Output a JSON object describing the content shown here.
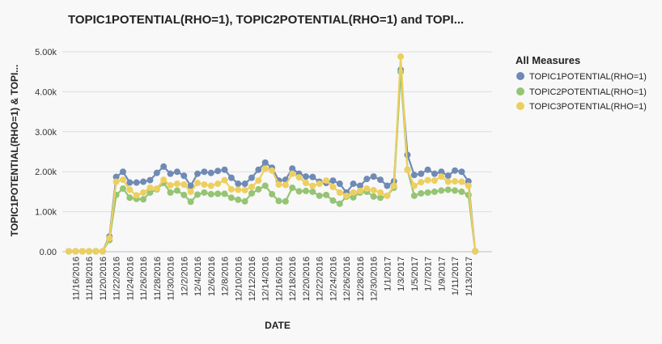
{
  "chart_data": {
    "type": "line",
    "title": "TOPIC1POTENTIAL(RHO=1), TOPIC2POTENTIAL(RHO=1) and TOPI...",
    "xlabel": "DATE",
    "ylabel": "TOPIC1POTENTIAL(RHO=1) & TOPI...",
    "ylim": [
      0,
      5000
    ],
    "yticks": [
      "0.00",
      "1.00k",
      "2.00k",
      "3.00k",
      "4.00k",
      "5.00k"
    ],
    "grid": true,
    "legend_title": "All Measures",
    "legend_position": "right",
    "x": [
      "11/15/2016",
      "11/16/2016",
      "11/17/2016",
      "11/18/2016",
      "11/19/2016",
      "11/20/2016",
      "11/21/2016",
      "11/22/2016",
      "11/23/2016",
      "11/24/2016",
      "11/25/2016",
      "11/26/2016",
      "11/27/2016",
      "11/28/2016",
      "11/29/2016",
      "11/30/2016",
      "12/1/2016",
      "12/2/2016",
      "12/3/2016",
      "12/4/2016",
      "12/5/2016",
      "12/6/2016",
      "12/7/2016",
      "12/8/2016",
      "12/9/2016",
      "12/10/2016",
      "12/11/2016",
      "12/12/2016",
      "12/13/2016",
      "12/14/2016",
      "12/15/2016",
      "12/16/2016",
      "12/17/2016",
      "12/18/2016",
      "12/19/2016",
      "12/20/2016",
      "12/21/2016",
      "12/22/2016",
      "12/23/2016",
      "12/24/2016",
      "12/25/2016",
      "12/26/2016",
      "12/27/2016",
      "12/28/2016",
      "12/29/2016",
      "12/30/2016",
      "12/31/2016",
      "1/1/2017",
      "1/2/2017",
      "1/3/2017",
      "1/4/2017",
      "1/5/2017",
      "1/6/2017",
      "1/7/2017",
      "1/8/2017",
      "1/9/2017",
      "1/10/2017",
      "1/11/2017",
      "1/12/2017",
      "1/13/2017",
      "1/14/2017"
    ],
    "x_tick_labels": [
      "11/16/2016",
      "11/18/2016",
      "11/20/2016",
      "11/22/2016",
      "11/24/2016",
      "11/26/2016",
      "11/28/2016",
      "11/30/2016",
      "12/2/2016",
      "12/4/2016",
      "12/6/2016",
      "12/8/2016",
      "12/10/2016",
      "12/12/2016",
      "12/14/2016",
      "12/16/2016",
      "12/18/2016",
      "12/20/2016",
      "12/22/2016",
      "12/24/2016",
      "12/26/2016",
      "12/28/2016",
      "12/30/2016",
      "1/1/2017",
      "1/3/2017",
      "1/5/2017",
      "1/7/2017",
      "1/9/2017",
      "1/11/2017",
      "1/13/2017"
    ],
    "series": [
      {
        "name": "TOPIC1POTENTIAL(RHO=1)",
        "color": "#6f8ab4",
        "values": [
          10,
          10,
          10,
          10,
          10,
          10,
          380,
          1870,
          2000,
          1730,
          1730,
          1750,
          1790,
          1970,
          2130,
          1950,
          2000,
          1900,
          1650,
          1950,
          2000,
          1970,
          2020,
          2050,
          1850,
          1700,
          1700,
          1850,
          2050,
          2230,
          2100,
          1780,
          1800,
          2080,
          1950,
          1880,
          1870,
          1750,
          1720,
          1780,
          1700,
          1480,
          1700,
          1650,
          1820,
          1880,
          1800,
          1650,
          1760,
          4550,
          2420,
          1920,
          1950,
          2050,
          1950,
          2000,
          1900,
          2030,
          2000,
          1760,
          10
        ]
      },
      {
        "name": "TOPIC2POTENTIAL(RHO=1)",
        "color": "#95c474",
        "values": [
          10,
          10,
          10,
          10,
          10,
          10,
          290,
          1420,
          1580,
          1350,
          1320,
          1310,
          1480,
          1560,
          1720,
          1480,
          1530,
          1420,
          1250,
          1430,
          1480,
          1440,
          1450,
          1450,
          1350,
          1300,
          1260,
          1460,
          1560,
          1650,
          1440,
          1270,
          1260,
          1600,
          1510,
          1520,
          1500,
          1400,
          1420,
          1280,
          1200,
          1380,
          1360,
          1480,
          1500,
          1380,
          1350,
          1400,
          1600,
          4500,
          2050,
          1400,
          1460,
          1480,
          1500,
          1530,
          1550,
          1530,
          1500,
          1420,
          10
        ]
      },
      {
        "name": "TOPIC3POTENTIAL(RHO=1)",
        "color": "#edcf5f",
        "values": [
          10,
          10,
          10,
          10,
          10,
          10,
          340,
          1750,
          1800,
          1550,
          1410,
          1480,
          1600,
          1580,
          1800,
          1660,
          1700,
          1680,
          1500,
          1720,
          1680,
          1650,
          1700,
          1790,
          1560,
          1550,
          1540,
          1620,
          1780,
          2080,
          2030,
          1680,
          1670,
          1950,
          1860,
          1720,
          1650,
          1700,
          1780,
          1620,
          1480,
          1400,
          1480,
          1520,
          1580,
          1540,
          1480,
          1400,
          1650,
          4880,
          2040,
          1650,
          1740,
          1790,
          1780,
          1880,
          1750,
          1760,
          1750,
          1650,
          10
        ]
      }
    ]
  }
}
